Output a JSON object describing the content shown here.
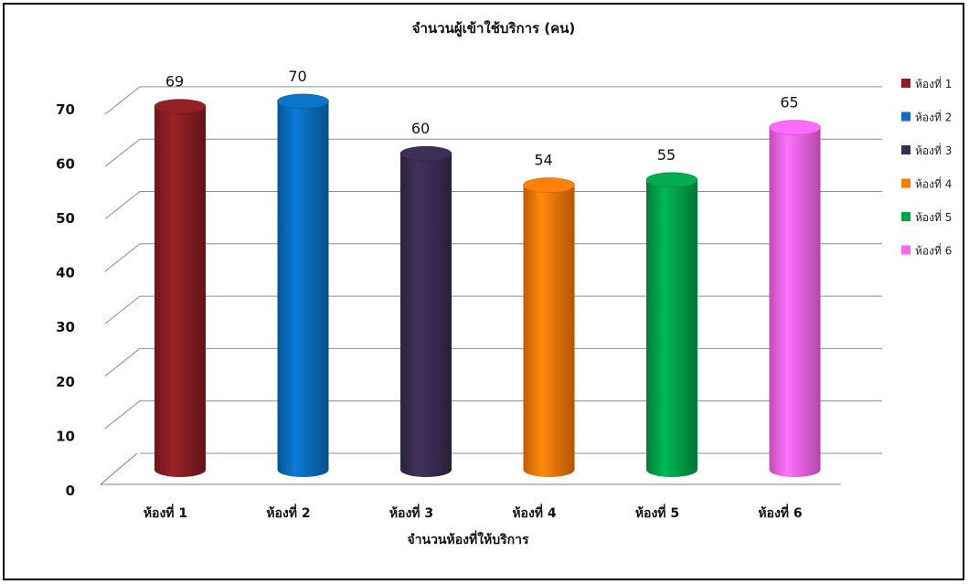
{
  "chart_data": {
    "type": "bar",
    "title": "จำนวนผู้เข้าใช้บริการ (คน)",
    "xlabel": "จำนวนห้องที่ให้บริการ",
    "ylabel": "",
    "ylim": [
      0,
      70
    ],
    "yticks": [
      0,
      10,
      20,
      30,
      40,
      50,
      60,
      70
    ],
    "categories": [
      "ห้องที่ 1",
      "ห้องที่ 2",
      "ห้องที่ 3",
      "ห้องที่ 4",
      "ห้องที่ 5",
      "ห้องที่ 6"
    ],
    "values": [
      69,
      70,
      60,
      54,
      55,
      65
    ],
    "colors": [
      "#8B1E24",
      "#0A6FC2",
      "#3A2D52",
      "#FF7A0A",
      "#00A64B",
      "#FF66F2"
    ],
    "legend": {
      "placement": "right",
      "entries": [
        "ห้องที่ 1",
        "ห้องที่ 2",
        "ห้องที่ 3",
        "ห้องที่ 4",
        "ห้องที่ 5",
        "ห้องที่ 6"
      ]
    },
    "grid": true,
    "bar_shape": "cylinder-3d"
  }
}
